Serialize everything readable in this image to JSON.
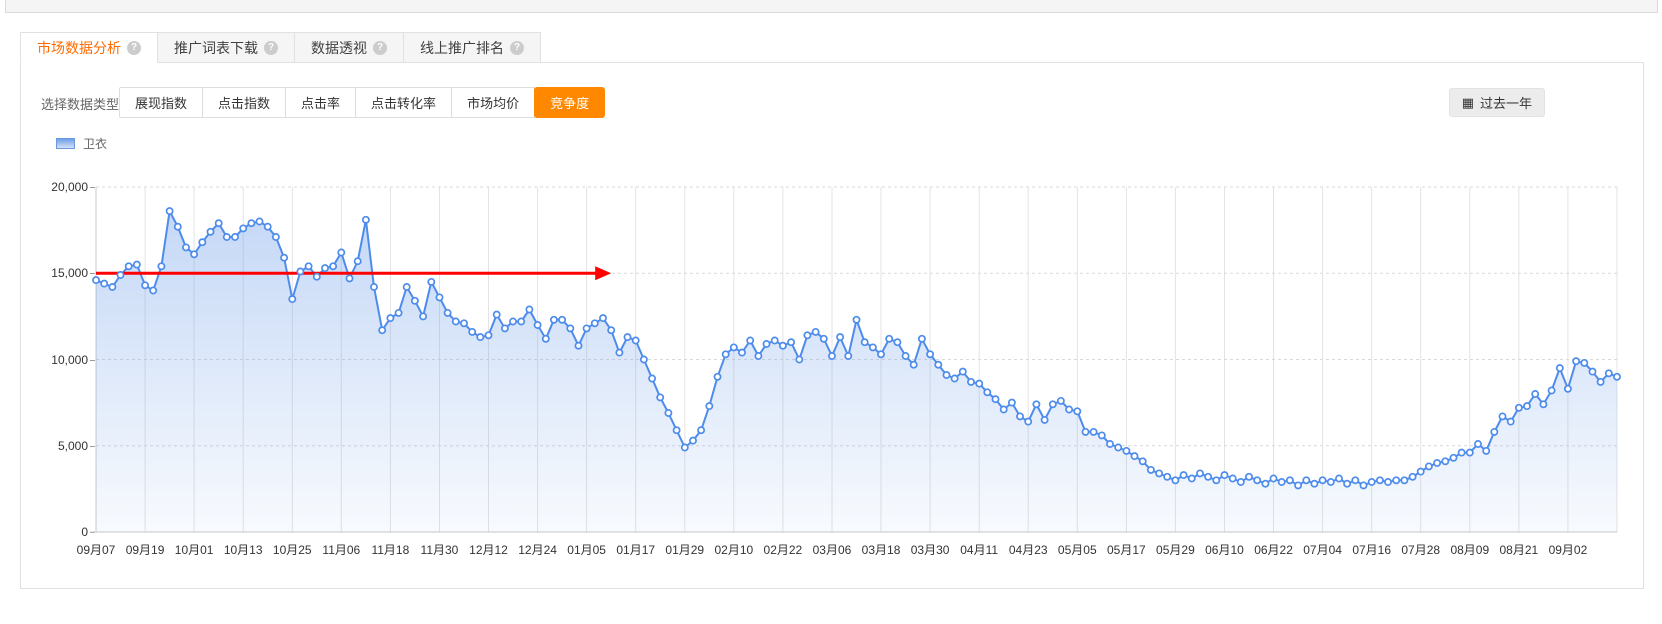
{
  "top_tabs": [
    {
      "label": "市场数据分析",
      "active": true,
      "has_help": true
    },
    {
      "label": "推广词表下载",
      "active": false,
      "has_help": true
    },
    {
      "label": "数据透视",
      "active": false,
      "has_help": true
    },
    {
      "label": "线上推广排名",
      "active": false,
      "has_help": true
    }
  ],
  "toolbar": {
    "type_label": "选择数据类型：",
    "type_buttons": [
      "展现指数",
      "点击指数",
      "点击率",
      "点击转化率",
      "市场均价",
      "竞争度"
    ],
    "active_type": "竞争度",
    "date_range_label": "过去一年",
    "calendar_icon": "▦"
  },
  "legend": {
    "series_label": "卫衣"
  },
  "chart_data": {
    "type": "line",
    "series_name": "卫衣",
    "ylabel": "",
    "xlabel": "",
    "ylim": [
      0,
      20000
    ],
    "grid": true,
    "y_ticks": [
      {
        "value": 0,
        "label": "0"
      },
      {
        "value": 5000,
        "label": "5,000"
      },
      {
        "value": 10000,
        "label": "10,000"
      },
      {
        "value": 15000,
        "label": "15,000"
      },
      {
        "value": 20000,
        "label": "20,000"
      }
    ],
    "x_tick_labels": [
      "09月07",
      "09月19",
      "10月01",
      "10月13",
      "10月25",
      "11月06",
      "11月18",
      "11月30",
      "12月12",
      "12月24",
      "01月05",
      "01月17",
      "01月29",
      "02月10",
      "02月22",
      "03月06",
      "03月18",
      "03月30",
      "04月11",
      "04月23",
      "05月05",
      "05月17",
      "05月29",
      "06月10",
      "06月22",
      "07月04",
      "07月16",
      "07月28",
      "08月09",
      "08月21",
      "09月02"
    ],
    "points_per_tick": 6,
    "point_interval_days": 2,
    "values": [
      14600,
      14400,
      14200,
      14900,
      15400,
      15500,
      14300,
      14000,
      15400,
      18600,
      17700,
      16500,
      16100,
      16800,
      17400,
      17900,
      17100,
      17100,
      17600,
      17900,
      18000,
      17700,
      17100,
      15900,
      13500,
      15100,
      15400,
      14800,
      15300,
      15400,
      16200,
      14700,
      15700,
      18100,
      14200,
      11700,
      12400,
      12700,
      14200,
      13400,
      12500,
      14500,
      13600,
      12700,
      12200,
      12100,
      11600,
      11300,
      11400,
      12600,
      11800,
      12200,
      12200,
      12900,
      12000,
      11200,
      12300,
      12300,
      11800,
      10800,
      11800,
      12100,
      12400,
      11700,
      10400,
      11300,
      11100,
      10000,
      8900,
      7800,
      6900,
      5900,
      4900,
      5300,
      5900,
      7300,
      9000,
      10300,
      10700,
      10400,
      11100,
      10200,
      10900,
      11100,
      10800,
      11000,
      10000,
      11400,
      11600,
      11200,
      10200,
      11300,
      10200,
      12300,
      11000,
      10700,
      10300,
      11200,
      11000,
      10200,
      9700,
      11200,
      10300,
      9700,
      9100,
      8900,
      9300,
      8700,
      8600,
      8100,
      7700,
      7100,
      7500,
      6700,
      6400,
      7400,
      6500,
      7400,
      7600,
      7100,
      7000,
      5800,
      5800,
      5600,
      5100,
      4900,
      4700,
      4400,
      4100,
      3600,
      3400,
      3200,
      3000,
      3300,
      3100,
      3400,
      3200,
      3000,
      3300,
      3100,
      2900,
      3200,
      3000,
      2800,
      3100,
      2900,
      3000,
      2700,
      3000,
      2800,
      3000,
      2900,
      3100,
      2800,
      3000,
      2700,
      2900,
      3000,
      2900,
      3000,
      3000,
      3200,
      3500,
      3800,
      4000,
      4100,
      4300,
      4600,
      4600,
      5100,
      4700,
      5800,
      6700,
      6400,
      7200,
      7300,
      8000,
      7400,
      8200,
      9500,
      8300,
      9900,
      9800,
      9300,
      8700,
      9200,
      9000
    ],
    "annotation": {
      "type": "arrow-line",
      "value": 15000,
      "start_index": 0,
      "end_index": 63,
      "color": "#ff0000"
    },
    "colors": {
      "line": "#4e8cec",
      "marker_fill": "#ffffff",
      "area_top": "rgba(116,162,234,0.42)",
      "area_bottom": "rgba(116,162,234,0.05)",
      "grid_vertical": "#e3e3e3",
      "grid_dashed": "#d9d9d9",
      "axis": "#c9c9c9"
    }
  }
}
